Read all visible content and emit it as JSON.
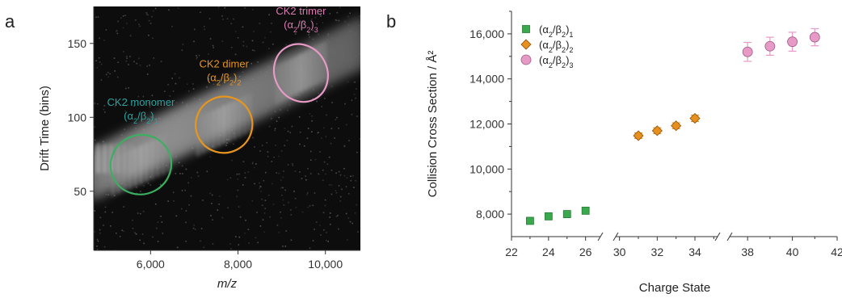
{
  "chart_data": [
    {
      "type": "heatmap",
      "panel_label": "a",
      "xlabel": "m/z",
      "ylabel": "Drift Time (bins)",
      "xlim": [
        4700,
        10800
      ],
      "ylim": [
        10,
        175
      ],
      "xticks": [
        6000,
        8000,
        10000
      ],
      "xtick_labels": [
        "6,000",
        "8,000",
        "10,000"
      ],
      "yticks": [
        50,
        100,
        150
      ],
      "ytick_labels": [
        "50",
        "100",
        "150"
      ],
      "annotations": [
        {
          "line1": "CK2 monomer",
          "line2": "(α2/β2)1",
          "color": "#2ca3a0",
          "cx": 5780,
          "cy": 68,
          "rx": 700,
          "ry": 20,
          "ellipse_color": "#3aaf60"
        },
        {
          "line1": "CK2 dimer",
          "line2": "(α2/β2)2",
          "color": "#e8951e",
          "cx": 7680,
          "cy": 95,
          "rx": 650,
          "ry": 19,
          "ellipse_color": "#e8951e"
        },
        {
          "line1": "CK2 trimer",
          "line2": "(α2/β2)3",
          "color": "#d97cb0",
          "cx": 9440,
          "cy": 130,
          "rx": 600,
          "ry": 20,
          "ellipse_color": "#e79ac6"
        }
      ]
    },
    {
      "type": "scatter",
      "panel_label": "b",
      "xlabel": "Charge State",
      "ylabel": "Collision Cross Section / Å²",
      "xlim": [
        22,
        42
      ],
      "ylim": [
        7000,
        17000
      ],
      "axis_breaks": [
        [
          26.8,
          29.8
        ],
        [
          35.2,
          37.2
        ]
      ],
      "xticks": [
        22,
        24,
        26,
        30,
        32,
        34,
        38,
        40,
        42
      ],
      "yticks": [
        8000,
        10000,
        12000,
        14000,
        16000
      ],
      "ytick_labels": [
        "8,000",
        "10,000",
        "12,000",
        "14,000",
        "16,000"
      ],
      "legend_position": "top-left",
      "series": [
        {
          "name": "(α2/β2)1",
          "marker": "square",
          "color": "#3aa84d",
          "x": [
            23,
            24,
            25,
            26
          ],
          "y": [
            7700,
            7900,
            8000,
            8150
          ],
          "err": [
            0,
            0,
            0,
            0
          ]
        },
        {
          "name": "(α2/β2)2",
          "marker": "diamond",
          "color": "#e8901e",
          "x": [
            31,
            32,
            33,
            34
          ],
          "y": [
            11480,
            11700,
            11920,
            12250
          ],
          "err": [
            120,
            130,
            130,
            140
          ]
        },
        {
          "name": "(α2/β2)3",
          "marker": "circle",
          "color": "#e79ac6",
          "x": [
            38,
            39,
            40,
            41
          ],
          "y": [
            15200,
            15450,
            15650,
            15850
          ],
          "err": [
            420,
            400,
            420,
            380
          ]
        }
      ]
    }
  ]
}
